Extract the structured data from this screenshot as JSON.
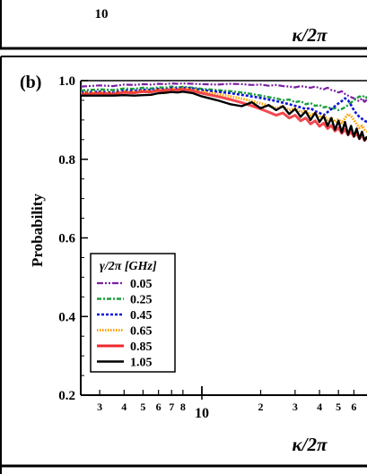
{
  "top_panel": {
    "tick_label": "10",
    "xlabel": "κ/2π"
  },
  "chart_data": {
    "type": "line",
    "panel_label": "(b)",
    "title": "",
    "xlabel": "κ/2π",
    "ylabel": "Probability",
    "xscale": "log",
    "xlim": [
      2.4,
      70
    ],
    "ylim": [
      0.2,
      1.0
    ],
    "x_major_ticks": [
      10
    ],
    "x_minor_ticks": [
      3,
      4,
      5,
      6,
      7,
      8,
      20,
      30,
      40,
      50,
      60
    ],
    "x_tick_labels": [
      "3",
      "4",
      "5",
      "6",
      "7",
      "8",
      "10",
      "2",
      "3",
      "4",
      "5",
      "6"
    ],
    "y_ticks": [
      0.2,
      0.4,
      0.6,
      0.8,
      1.0
    ],
    "y_tick_labels": [
      "0.2",
      "0.4",
      "0.6",
      "0.8",
      "1.0"
    ],
    "grid": false,
    "legend": {
      "title": "γ/2π [GHz]",
      "placement": "lower-left"
    },
    "x": [
      2.4,
      3,
      3.5,
      4,
      4.5,
      5,
      5.5,
      6,
      6.5,
      7,
      7.5,
      8,
      9,
      10,
      12,
      14,
      16,
      18,
      20,
      22,
      24,
      26,
      28,
      30,
      32,
      34,
      36,
      38,
      40,
      42,
      44,
      46,
      48,
      50,
      52,
      54,
      56,
      58,
      60,
      62,
      64,
      66,
      68,
      70
    ],
    "series": [
      {
        "name": "0.05",
        "color": "#7b1fa2",
        "dash": "dashdotdot",
        "values": [
          0.985,
          0.988,
          0.986,
          0.99,
          0.989,
          0.991,
          0.99,
          0.992,
          0.991,
          0.993,
          0.992,
          0.993,
          0.992,
          0.991,
          0.99,
          0.992,
          0.991,
          0.989,
          0.99,
          0.987,
          0.989,
          0.986,
          0.985,
          0.983,
          0.986,
          0.984,
          0.982,
          0.985,
          0.981,
          0.978,
          0.982,
          0.976,
          0.974,
          0.97,
          0.973,
          0.966,
          0.962,
          0.958,
          0.955,
          0.95,
          0.948,
          0.955,
          0.946,
          0.952
        ]
      },
      {
        "name": "0.25",
        "color": "#1b9e3a",
        "dash": "dashdot",
        "values": [
          0.975,
          0.978,
          0.976,
          0.98,
          0.979,
          0.982,
          0.98,
          0.983,
          0.982,
          0.985,
          0.983,
          0.984,
          0.982,
          0.979,
          0.976,
          0.973,
          0.97,
          0.966,
          0.962,
          0.958,
          0.955,
          0.95,
          0.952,
          0.945,
          0.948,
          0.94,
          0.943,
          0.936,
          0.938,
          0.932,
          0.934,
          0.928,
          0.93,
          0.925,
          0.928,
          0.932,
          0.938,
          0.944,
          0.95,
          0.955,
          0.96,
          0.958,
          0.962,
          0.955
        ]
      },
      {
        "name": "0.45",
        "color": "#0a14d8",
        "dash": "dot",
        "values": [
          0.97,
          0.972,
          0.97,
          0.975,
          0.974,
          0.977,
          0.976,
          0.979,
          0.978,
          0.981,
          0.98,
          0.982,
          0.98,
          0.976,
          0.972,
          0.968,
          0.964,
          0.96,
          0.956,
          0.952,
          0.948,
          0.944,
          0.94,
          0.936,
          0.932,
          0.928,
          0.93,
          0.922,
          0.918,
          0.912,
          0.92,
          0.928,
          0.935,
          0.942,
          0.948,
          0.955,
          0.95,
          0.938,
          0.925,
          0.915,
          0.908,
          0.903,
          0.898,
          0.895
        ]
      },
      {
        "name": "0.65",
        "color": "#ffa000",
        "dash": "densedot",
        "values": [
          0.968,
          0.97,
          0.968,
          0.972,
          0.971,
          0.974,
          0.973,
          0.977,
          0.976,
          0.979,
          0.978,
          0.98,
          0.977,
          0.972,
          0.966,
          0.96,
          0.954,
          0.948,
          0.942,
          0.936,
          0.93,
          0.935,
          0.925,
          0.93,
          0.92,
          0.924,
          0.912,
          0.918,
          0.906,
          0.91,
          0.9,
          0.905,
          0.895,
          0.902,
          0.892,
          0.905,
          0.915,
          0.91,
          0.9,
          0.89,
          0.88,
          0.885,
          0.875,
          0.87
        ]
      },
      {
        "name": "0.85",
        "color": "#f0282f",
        "dash": "solid-light",
        "values": [
          0.965,
          0.968,
          0.966,
          0.97,
          0.969,
          0.972,
          0.971,
          0.975,
          0.974,
          0.977,
          0.976,
          0.978,
          0.974,
          0.968,
          0.96,
          0.952,
          0.944,
          0.936,
          0.928,
          0.92,
          0.912,
          0.918,
          0.905,
          0.912,
          0.898,
          0.905,
          0.89,
          0.898,
          0.884,
          0.892,
          0.878,
          0.886,
          0.872,
          0.88,
          0.866,
          0.876,
          0.862,
          0.87,
          0.858,
          0.866,
          0.852,
          0.862,
          0.848,
          0.855
        ]
      },
      {
        "name": "1.05",
        "color": "#000000",
        "dash": "solid",
        "values": [
          0.962,
          0.962,
          0.962,
          0.963,
          0.962,
          0.963,
          0.964,
          0.968,
          0.969,
          0.971,
          0.97,
          0.972,
          0.968,
          0.96,
          0.95,
          0.94,
          0.935,
          0.945,
          0.93,
          0.938,
          0.925,
          0.935,
          0.915,
          0.928,
          0.908,
          0.922,
          0.9,
          0.918,
          0.895,
          0.91,
          0.885,
          0.905,
          0.875,
          0.898,
          0.868,
          0.895,
          0.862,
          0.885,
          0.858,
          0.878,
          0.852,
          0.87,
          0.848,
          0.858
        ]
      }
    ]
  }
}
